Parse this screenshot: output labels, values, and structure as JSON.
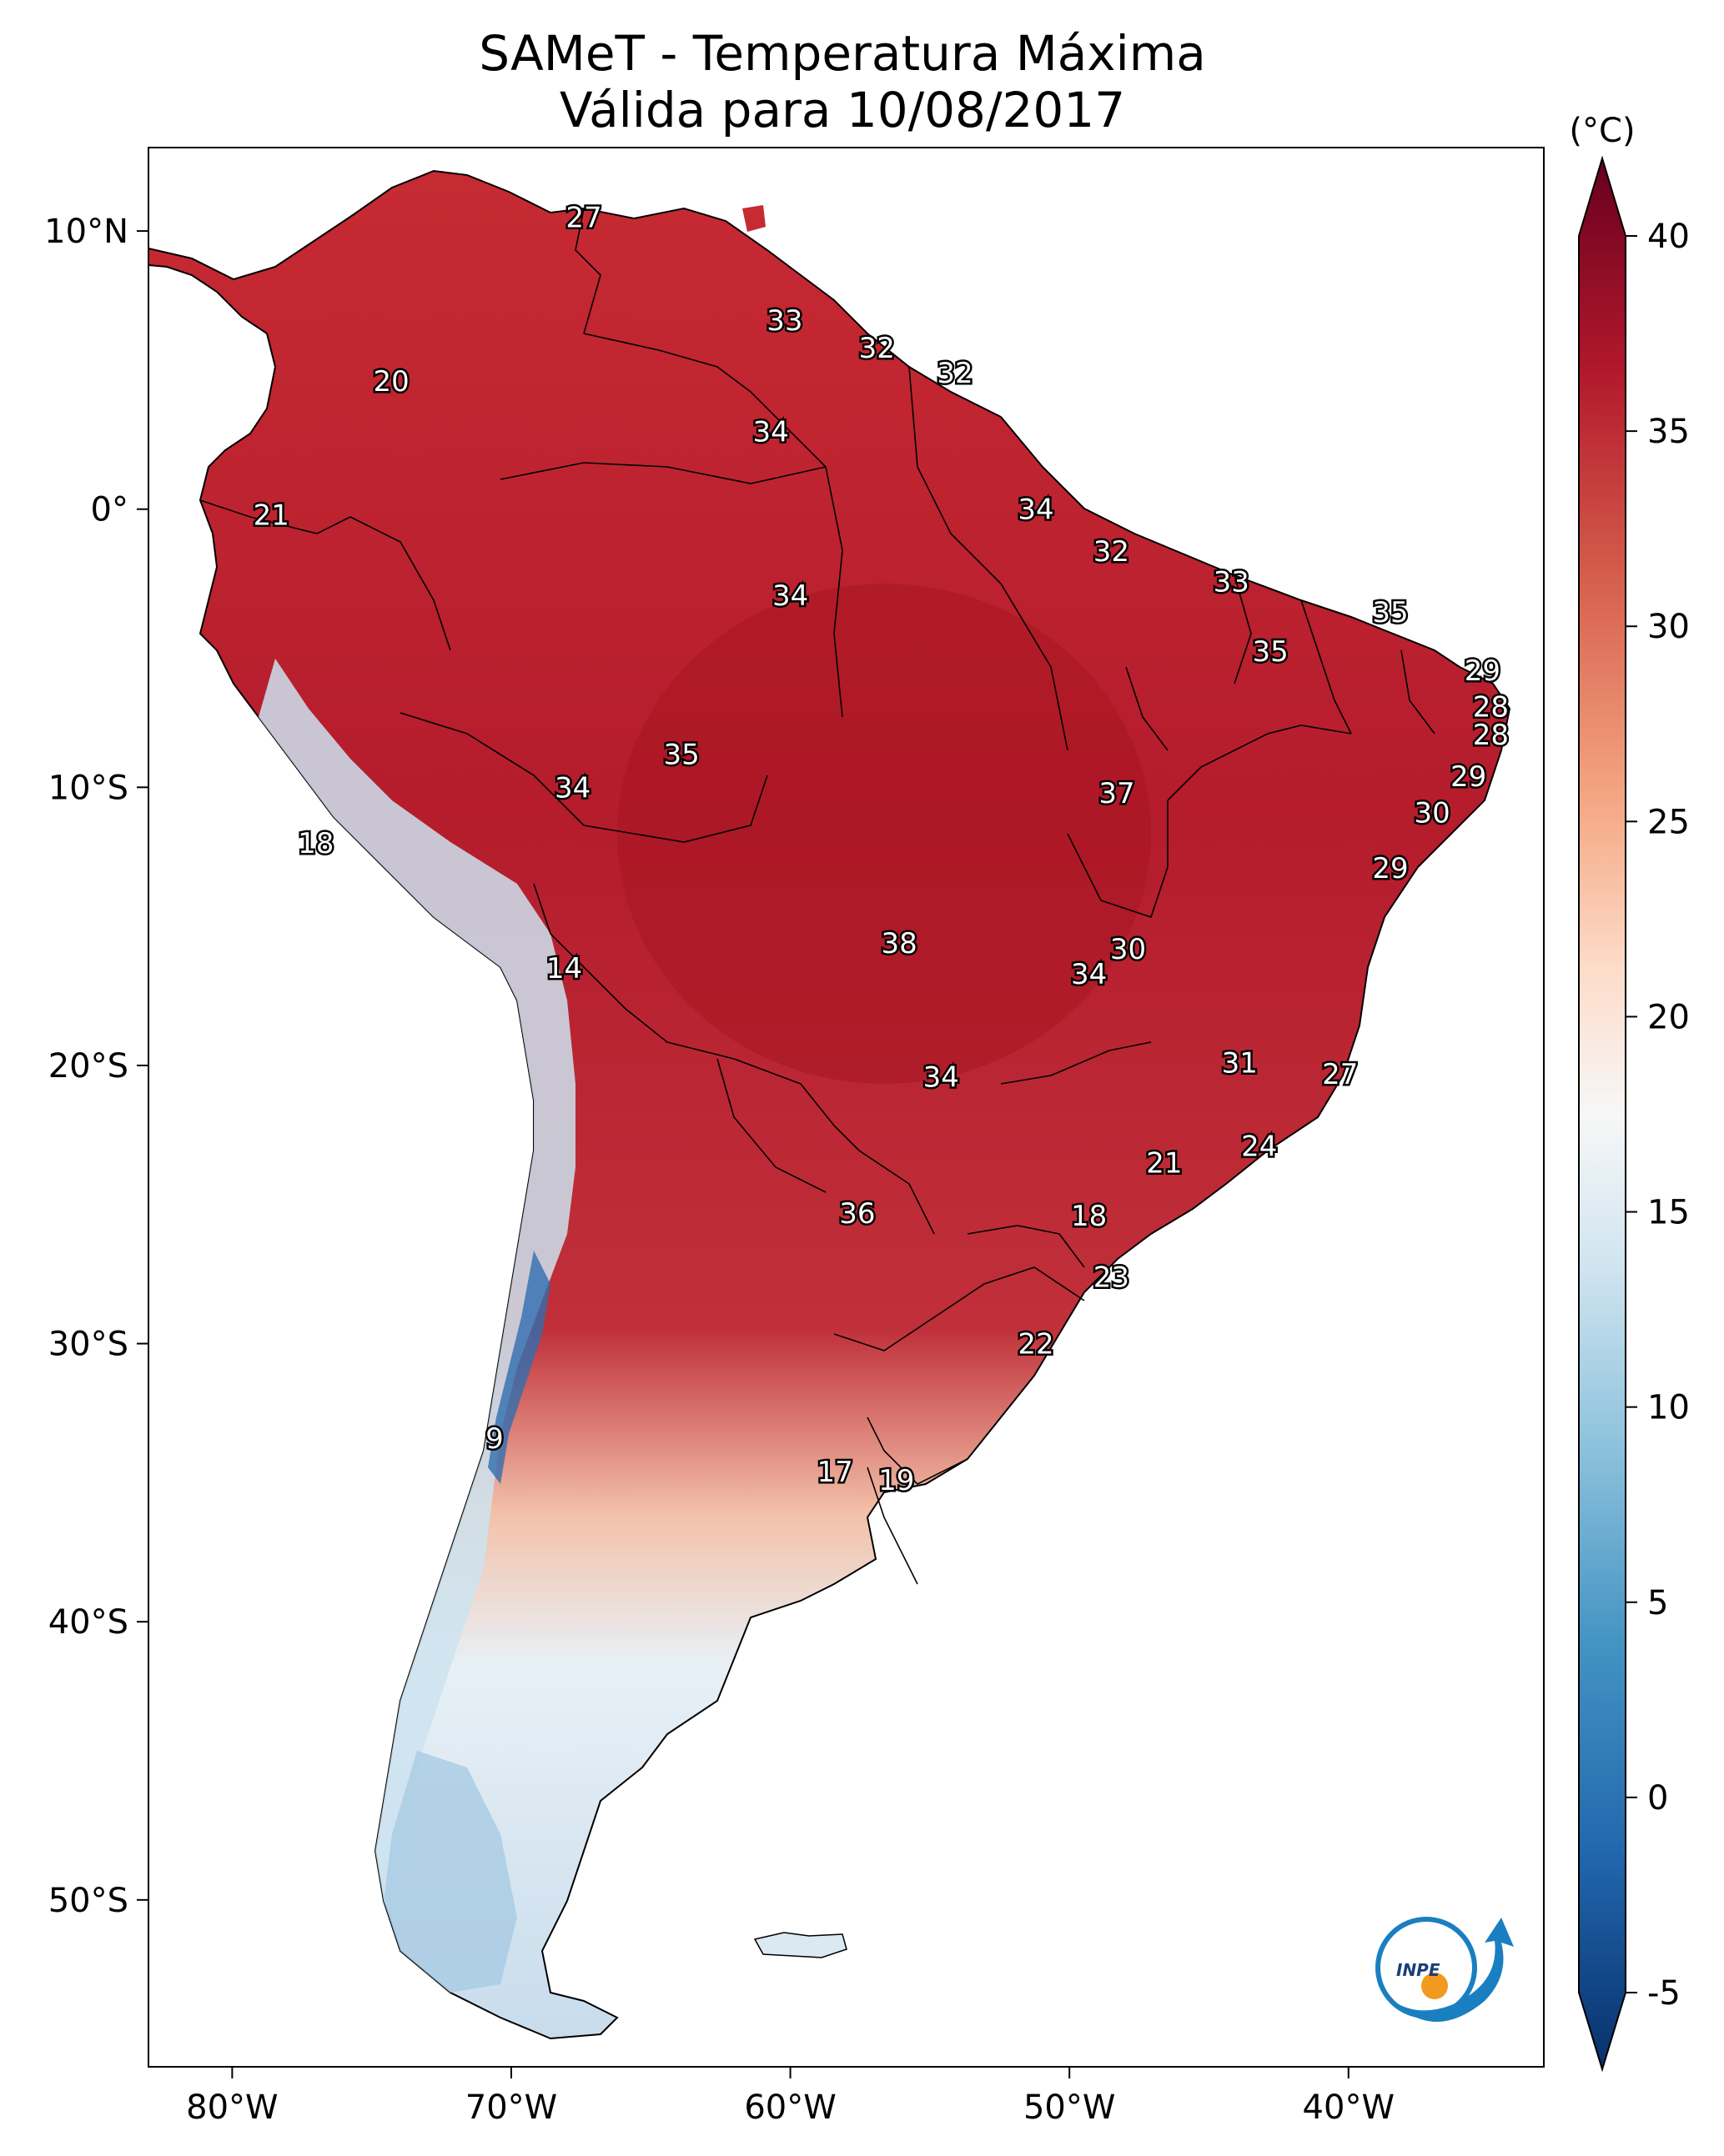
{
  "title": {
    "line1": "SAMeT - Temperatura Máxima",
    "line2": "Válida para 10/08/2017"
  },
  "map": {
    "lon_range": [
      -83,
      -33
    ],
    "lat_range": [
      -56,
      13
    ],
    "x_ticks": [
      {
        "lon": -80,
        "label": "80°W"
      },
      {
        "lon": -70,
        "label": "70°W"
      },
      {
        "lon": -60,
        "label": "60°W"
      },
      {
        "lon": -50,
        "label": "50°W"
      },
      {
        "lon": -40,
        "label": "40°W"
      }
    ],
    "y_ticks": [
      {
        "lat": 10,
        "label": "10°N"
      },
      {
        "lat": 0,
        "label": "0°"
      },
      {
        "lat": -10,
        "label": "10°S"
      },
      {
        "lat": -20,
        "label": "20°S"
      },
      {
        "lat": -30,
        "label": "30°S"
      },
      {
        "lat": -40,
        "label": "40°S"
      },
      {
        "lat": -50,
        "label": "50°S"
      }
    ]
  },
  "colorbar": {
    "unit": "(°C)",
    "range": [
      -5,
      40
    ],
    "ticks": [
      {
        "v": 40,
        "label": "40"
      },
      {
        "v": 35,
        "label": "35"
      },
      {
        "v": 30,
        "label": "30"
      },
      {
        "v": 25,
        "label": "25"
      },
      {
        "v": 20,
        "label": "20"
      },
      {
        "v": 15,
        "label": "15"
      },
      {
        "v": 10,
        "label": "10"
      },
      {
        "v": 5,
        "label": "5"
      },
      {
        "v": 0,
        "label": "0"
      },
      {
        "v": -5,
        "label": "-5"
      }
    ],
    "stops": [
      {
        "v": -5,
        "color": "#08306b"
      },
      {
        "v": 0,
        "color": "#2166ac"
      },
      {
        "v": 5,
        "color": "#4393c3"
      },
      {
        "v": 10,
        "color": "#92c5de"
      },
      {
        "v": 14,
        "color": "#d1e5f0"
      },
      {
        "v": 17.5,
        "color": "#f7f7f7"
      },
      {
        "v": 21,
        "color": "#fddbc7"
      },
      {
        "v": 25,
        "color": "#f4a582"
      },
      {
        "v": 30,
        "color": "#d6604d"
      },
      {
        "v": 35,
        "color": "#b2182b"
      },
      {
        "v": 40,
        "color": "#67001f"
      }
    ]
  },
  "city_values": [
    {
      "lon": -67.4,
      "lat": 10.5,
      "value": "27"
    },
    {
      "lon": -74.3,
      "lat": 4.6,
      "value": "20"
    },
    {
      "lon": -78.6,
      "lat": -0.2,
      "value": "21"
    },
    {
      "lon": -60.2,
      "lat": 6.8,
      "value": "33"
    },
    {
      "lon": -56.9,
      "lat": 5.8,
      "value": "32"
    },
    {
      "lon": -54.1,
      "lat": 4.9,
      "value": "32"
    },
    {
      "lon": -60.7,
      "lat": 2.8,
      "value": "34"
    },
    {
      "lon": -51.2,
      "lat": 0.0,
      "value": "34"
    },
    {
      "lon": -48.5,
      "lat": -1.5,
      "value": "32"
    },
    {
      "lon": -60.0,
      "lat": -3.1,
      "value": "34"
    },
    {
      "lon": -44.2,
      "lat": -2.6,
      "value": "33"
    },
    {
      "lon": -38.5,
      "lat": -3.7,
      "value": "35"
    },
    {
      "lon": -42.8,
      "lat": -5.1,
      "value": "35"
    },
    {
      "lon": -35.2,
      "lat": -5.8,
      "value": "29"
    },
    {
      "lon": -34.9,
      "lat": -7.1,
      "value": "28"
    },
    {
      "lon": -34.9,
      "lat": -8.1,
      "value": "28"
    },
    {
      "lon": -63.9,
      "lat": -8.8,
      "value": "35"
    },
    {
      "lon": -67.8,
      "lat": -10.0,
      "value": "34"
    },
    {
      "lon": -48.3,
      "lat": -10.2,
      "value": "37"
    },
    {
      "lon": -35.7,
      "lat": -9.6,
      "value": "29"
    },
    {
      "lon": -37.0,
      "lat": -10.9,
      "value": "30"
    },
    {
      "lon": -38.5,
      "lat": -12.9,
      "value": "29"
    },
    {
      "lon": -77.0,
      "lat": -12.0,
      "value": "18"
    },
    {
      "lon": -68.1,
      "lat": -16.5,
      "value": "14"
    },
    {
      "lon": -56.1,
      "lat": -15.6,
      "value": "38"
    },
    {
      "lon": -47.9,
      "lat": -15.8,
      "value": "30"
    },
    {
      "lon": -49.3,
      "lat": -16.7,
      "value": "34"
    },
    {
      "lon": -43.9,
      "lat": -19.9,
      "value": "31"
    },
    {
      "lon": -40.3,
      "lat": -20.3,
      "value": "27"
    },
    {
      "lon": -54.6,
      "lat": -20.4,
      "value": "34"
    },
    {
      "lon": -43.2,
      "lat": -22.9,
      "value": "24"
    },
    {
      "lon": -46.6,
      "lat": -23.5,
      "value": "21"
    },
    {
      "lon": -57.6,
      "lat": -25.3,
      "value": "36"
    },
    {
      "lon": -49.3,
      "lat": -25.4,
      "value": "18"
    },
    {
      "lon": -48.5,
      "lat": -27.6,
      "value": "23"
    },
    {
      "lon": -51.2,
      "lat": -30.0,
      "value": "22"
    },
    {
      "lon": -70.6,
      "lat": -33.4,
      "value": "9"
    },
    {
      "lon": -58.4,
      "lat": -34.6,
      "value": "17"
    },
    {
      "lon": -56.2,
      "lat": -34.9,
      "value": "19"
    }
  ],
  "logo": {
    "text": "INPE"
  }
}
